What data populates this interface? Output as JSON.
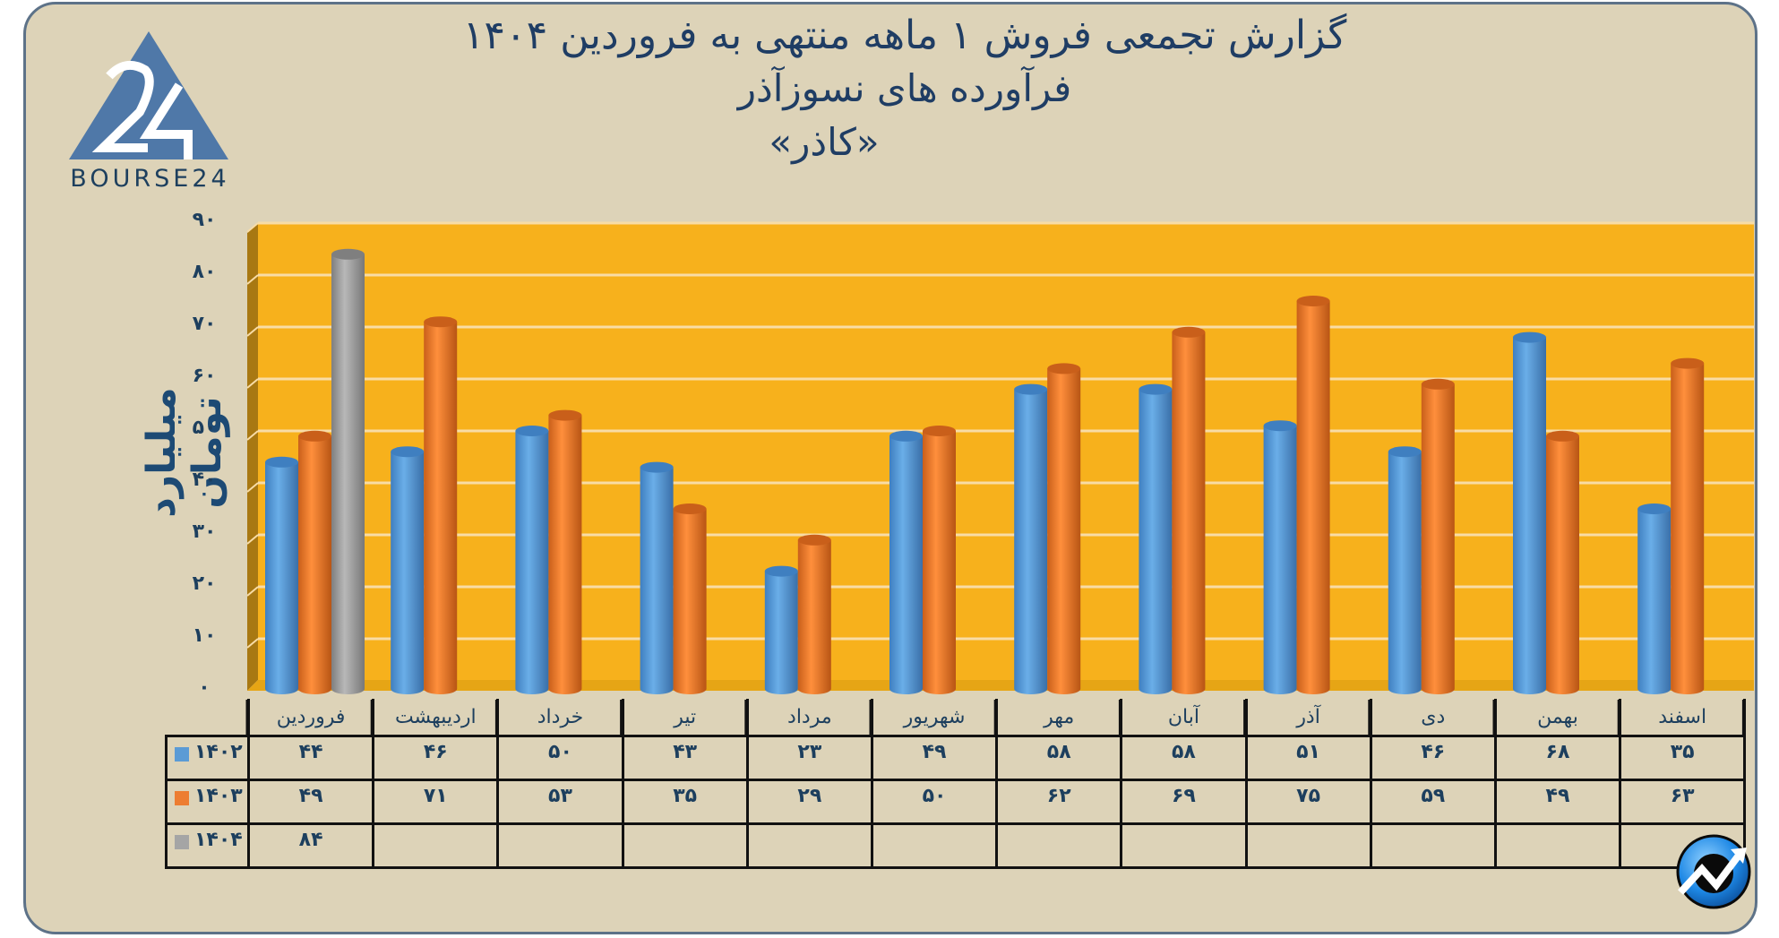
{
  "header": {
    "logo_text": "BOURSE24",
    "title_line1": "گزارش تجمعی فروش ۱ ماهه منتهی به فروردین ۱۴۰۴",
    "title_line2": "فرآورده های نسوزآذر",
    "title_line3": "«کاذر»"
  },
  "axis": {
    "y_title": "میلیارد تومان",
    "y_ticks": [
      "۰",
      "۱۰",
      "۲۰",
      "۳۰",
      "۴۰",
      "۵۰",
      "۶۰",
      "۷۰",
      "۸۰",
      "۹۰"
    ]
  },
  "colors": {
    "series_1402": "#5b9bd5",
    "series_1403": "#ed7d31",
    "series_1404": "#a5a5a5",
    "plot_background": "#f7b11c",
    "page_background": "#ddd3b8",
    "title_text": "#1f3d64"
  },
  "table": {
    "months": [
      "فروردین",
      "اردیبهشت",
      "خرداد",
      "تیر",
      "مرداد",
      "شهریور",
      "مهر",
      "آبان",
      "آذر",
      "دی",
      "بهمن",
      "اسفند"
    ],
    "rows": [
      {
        "label": "۱۴۰۲",
        "color": "#5b9bd5",
        "values": [
          "۴۴",
          "۴۶",
          "۵۰",
          "۴۳",
          "۲۳",
          "۴۹",
          "۵۸",
          "۵۸",
          "۵۱",
          "۴۶",
          "۶۸",
          "۳۵"
        ]
      },
      {
        "label": "۱۴۰۳",
        "color": "#ed7d31",
        "values": [
          "۴۹",
          "۷۱",
          "۵۳",
          "۳۵",
          "۲۹",
          "۵۰",
          "۶۲",
          "۶۹",
          "۷۵",
          "۵۹",
          "۴۹",
          "۶۳"
        ]
      },
      {
        "label": "۱۴۰۴",
        "color": "#a5a5a5",
        "values": [
          "۸۴",
          "",
          "",
          "",
          "",
          "",
          "",
          "",
          "",
          "",
          "",
          ""
        ]
      }
    ]
  },
  "chart_data": {
    "type": "bar",
    "title": "گزارش تجمعی فروش ۱ ماهه منتهی به فروردین ۱۴۰۴ — فرآورده های نسوزآذر «کاذر»",
    "xlabel": "",
    "ylabel": "میلیارد تومان",
    "ylim": [
      0,
      90
    ],
    "y_ticks": [
      0,
      10,
      20,
      30,
      40,
      50,
      60,
      70,
      80,
      90
    ],
    "grid": true,
    "legend_position": "data-table",
    "style": "3d-cylinder",
    "categories": [
      "فروردین",
      "اردیبهشت",
      "خرداد",
      "تیر",
      "مرداد",
      "شهریور",
      "مهر",
      "آبان",
      "آذر",
      "دی",
      "بهمن",
      "اسفند"
    ],
    "series": [
      {
        "name": "1402",
        "color": "#5b9bd5",
        "values": [
          44,
          46,
          50,
          43,
          23,
          49,
          58,
          58,
          51,
          46,
          68,
          35
        ]
      },
      {
        "name": "1403",
        "color": "#ed7d31",
        "values": [
          49,
          71,
          53,
          35,
          29,
          50,
          62,
          69,
          75,
          59,
          49,
          63
        ]
      },
      {
        "name": "1404",
        "color": "#a5a5a5",
        "values": [
          84,
          null,
          null,
          null,
          null,
          null,
          null,
          null,
          null,
          null,
          null,
          null
        ]
      }
    ]
  }
}
